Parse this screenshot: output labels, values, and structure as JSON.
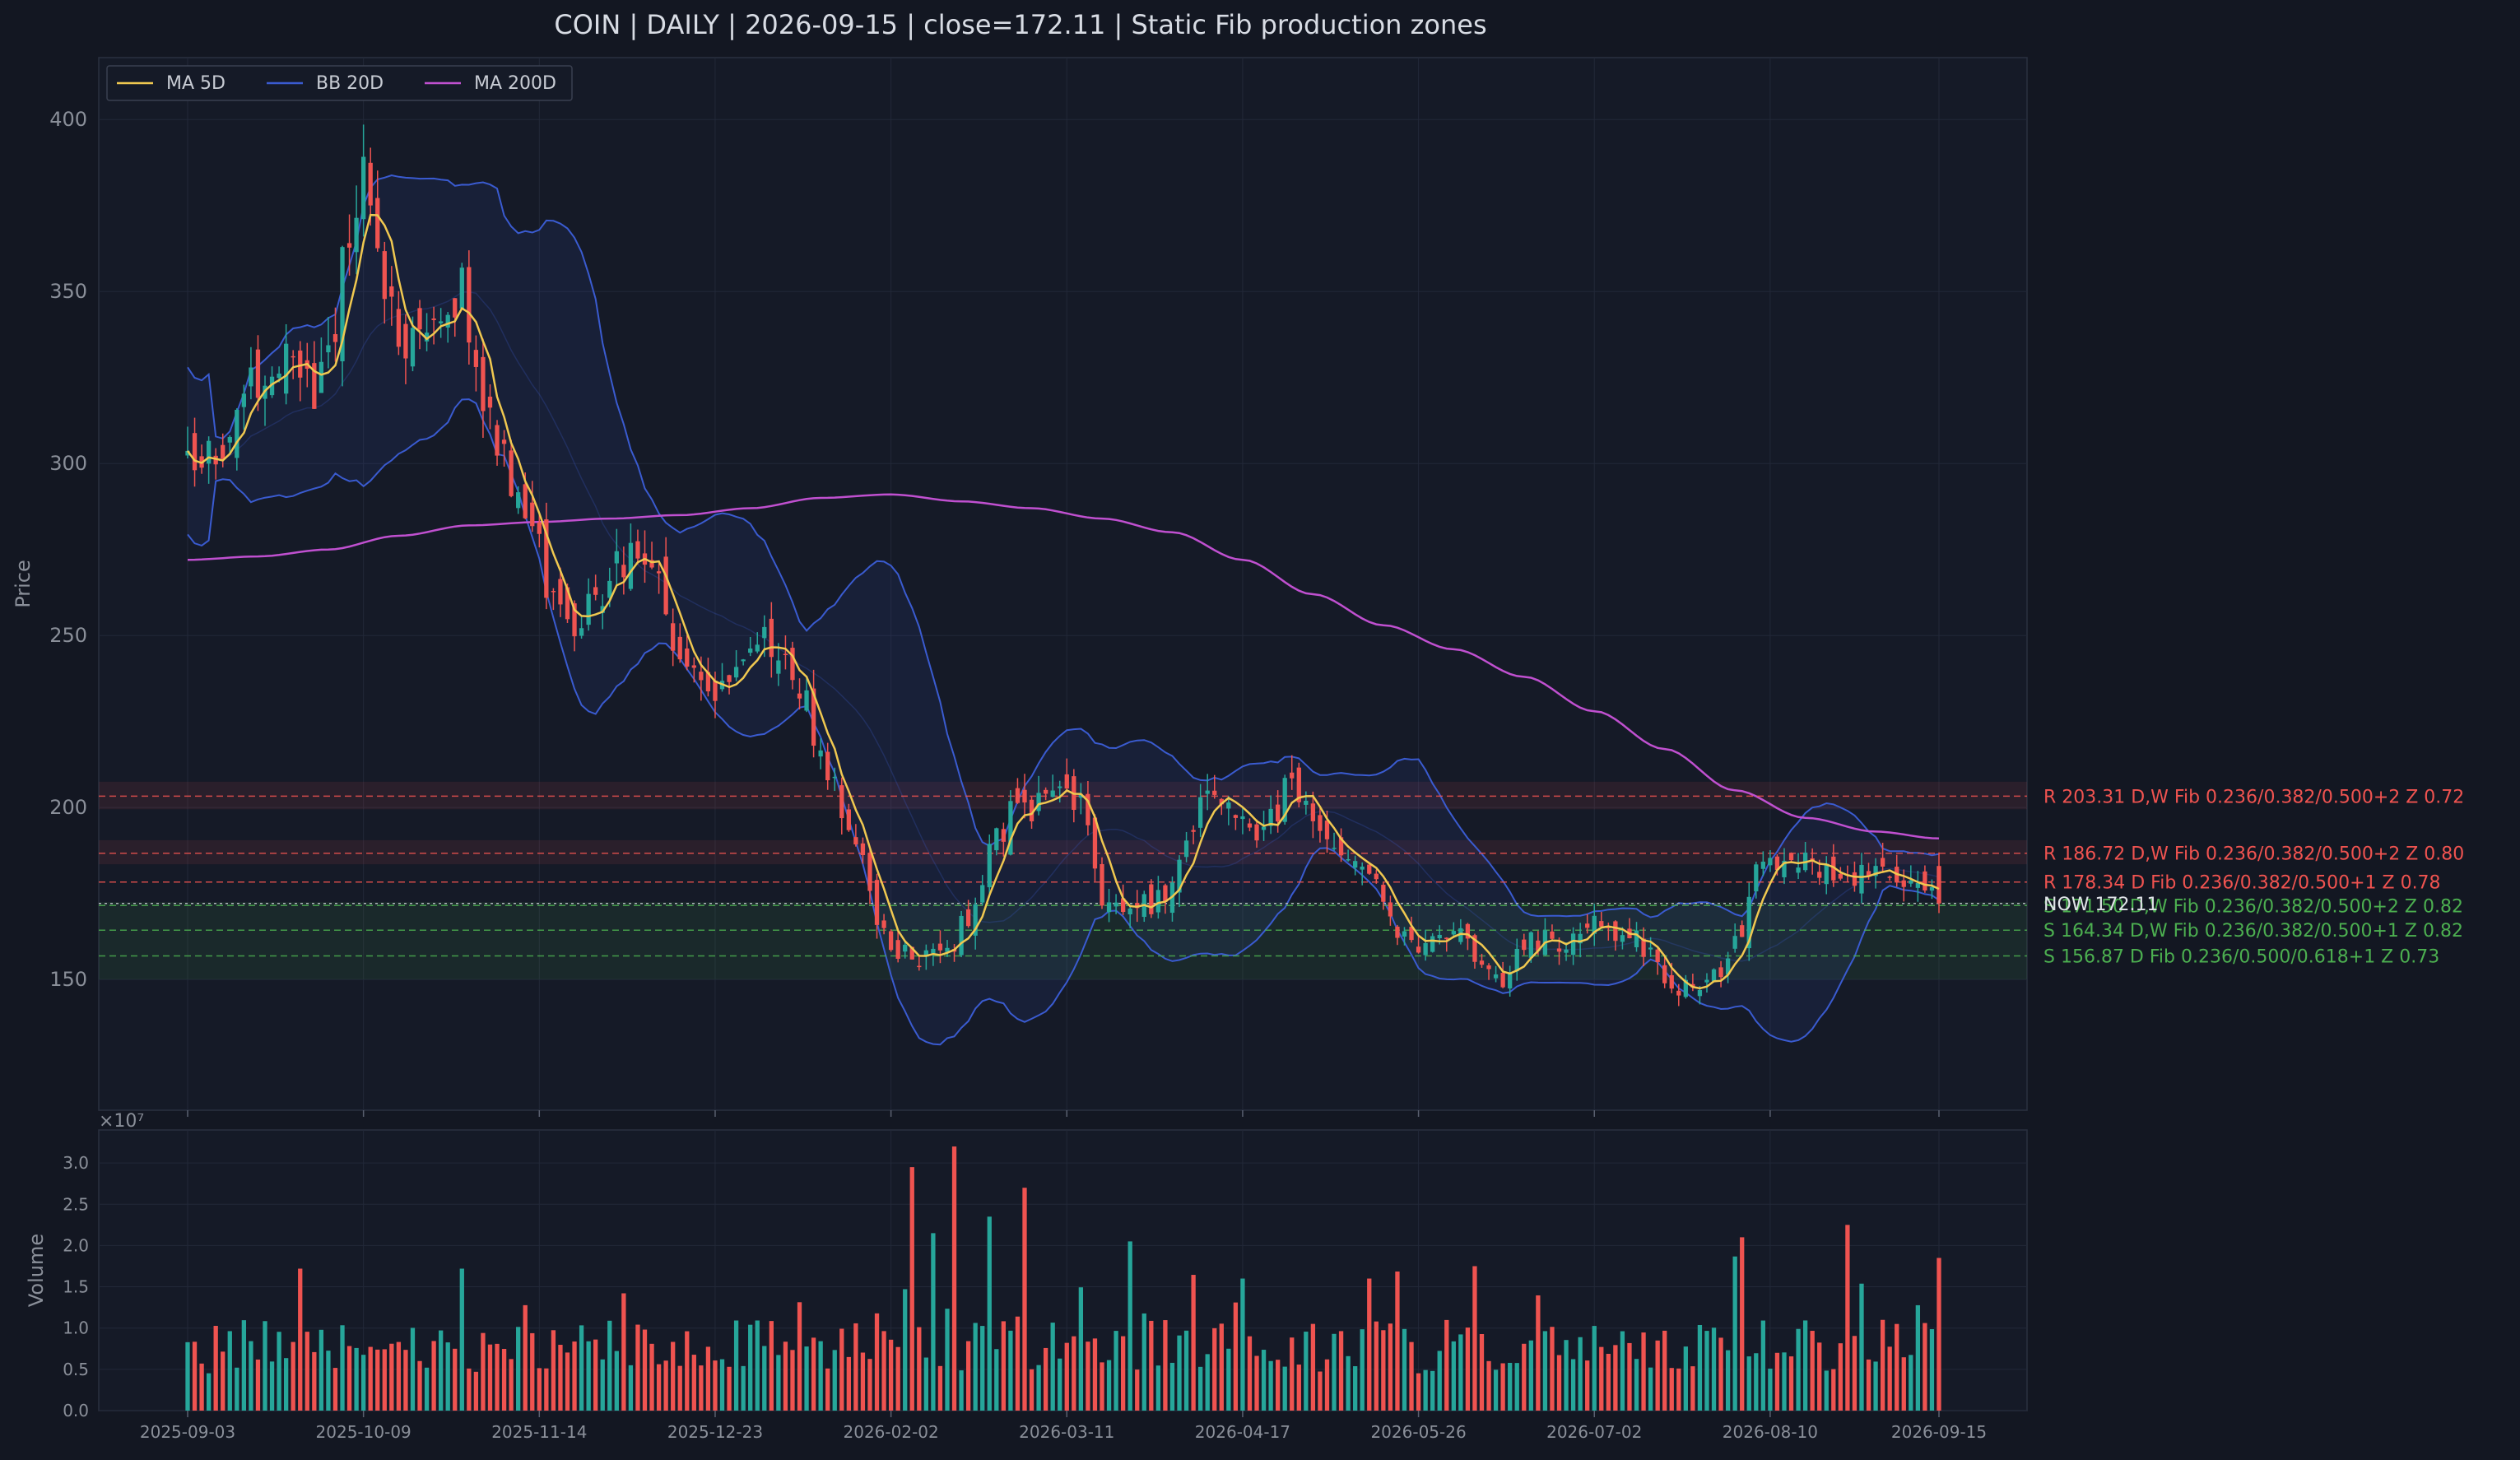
{
  "title": "COIN  |  DAILY  |  2026-09-15  |  close=172.11  |  Static Fib production zones",
  "colors": {
    "background": "#131722",
    "panel": "#151a27",
    "grid": "#222838",
    "up": "#26a69a",
    "down": "#ef5350",
    "ma5": "#f0c850",
    "bb20": "#3a5bd0",
    "bb_fill": "#1a2342",
    "ma200": "#c050d0",
    "resistance": "#ef5350",
    "support": "#4caf50",
    "text": "#c8ccd4",
    "axis_text": "#8a8f99"
  },
  "chart_data": {
    "type": "candlestick",
    "title": "COIN  |  DAILY  |  2026-09-15  |  close=172.11  |  Static Fib production zones",
    "price_panel": {
      "ylabel": "Price",
      "ylim": [
        112,
        418
      ],
      "yticks": [
        150,
        200,
        250,
        300,
        350,
        400
      ],
      "grid": true,
      "legend_position": "top-left",
      "legend": [
        "MA 5D",
        "BB 20D",
        "MA 200D"
      ]
    },
    "volume_panel": {
      "ylabel": "Volume",
      "multiplier_label": "×10⁷",
      "ylim": [
        0,
        3.4
      ],
      "yticks": [
        "0.0",
        "0.5",
        "1.0",
        "1.5",
        "2.0",
        "2.5",
        "3.0"
      ]
    },
    "x_ticks": [
      "2025-09-03",
      "2025-10-09",
      "2025-11-14",
      "2025-12-23",
      "2026-02-02",
      "2026-03-11",
      "2026-04-17",
      "2026-05-26",
      "2026-07-02",
      "2026-08-10",
      "2026-09-15"
    ],
    "x_tick_index": [
      0,
      25,
      50,
      75,
      100,
      125,
      150,
      175,
      200,
      225,
      249
    ],
    "num_bars": 250,
    "close_anchors": [
      [
        0,
        305
      ],
      [
        4,
        303
      ],
      [
        10,
        325
      ],
      [
        15,
        333
      ],
      [
        18,
        320
      ],
      [
        21,
        340
      ],
      [
        23,
        370
      ],
      [
        25,
        385
      ],
      [
        27,
        355
      ],
      [
        30,
        340
      ],
      [
        33,
        332
      ],
      [
        36,
        348
      ],
      [
        39,
        350
      ],
      [
        42,
        320
      ],
      [
        45,
        300
      ],
      [
        48,
        285
      ],
      [
        52,
        262
      ],
      [
        55,
        248
      ],
      [
        58,
        262
      ],
      [
        62,
        272
      ],
      [
        66,
        270
      ],
      [
        70,
        245
      ],
      [
        74,
        238
      ],
      [
        76,
        232
      ],
      [
        79,
        246
      ],
      [
        83,
        248
      ],
      [
        87,
        233
      ],
      [
        91,
        212
      ],
      [
        95,
        190
      ],
      [
        98,
        168
      ],
      [
        101,
        158
      ],
      [
        104,
        156
      ],
      [
        108,
        160
      ],
      [
        112,
        170
      ],
      [
        115,
        192
      ],
      [
        118,
        200
      ],
      [
        121,
        200
      ],
      [
        124,
        203
      ],
      [
        127,
        200
      ],
      [
        130,
        175
      ],
      [
        133,
        168
      ],
      [
        136,
        172
      ],
      [
        139,
        175
      ],
      [
        142,
        190
      ],
      [
        145,
        202
      ],
      [
        148,
        200
      ],
      [
        151,
        192
      ],
      [
        154,
        198
      ],
      [
        157,
        207
      ],
      [
        160,
        198
      ],
      [
        163,
        190
      ],
      [
        166,
        185
      ],
      [
        169,
        176
      ],
      [
        172,
        162
      ],
      [
        175,
        157
      ],
      [
        178,
        162
      ],
      [
        181,
        165
      ],
      [
        184,
        155
      ],
      [
        187,
        148
      ],
      [
        190,
        160
      ],
      [
        193,
        162
      ],
      [
        196,
        160
      ],
      [
        200,
        165
      ],
      [
        204,
        163
      ],
      [
        207,
        160
      ],
      [
        210,
        150
      ],
      [
        213,
        148
      ],
      [
        216,
        150
      ],
      [
        218,
        150
      ],
      [
        220,
        160
      ],
      [
        223,
        182
      ],
      [
        226,
        186
      ],
      [
        229,
        184
      ],
      [
        232,
        183
      ],
      [
        235,
        181
      ],
      [
        238,
        180
      ],
      [
        241,
        179
      ],
      [
        244,
        177
      ],
      [
        247,
        174
      ],
      [
        249,
        172.11
      ]
    ],
    "ma200_anchors": [
      [
        0,
        272
      ],
      [
        10,
        273
      ],
      [
        20,
        275
      ],
      [
        30,
        279
      ],
      [
        40,
        282
      ],
      [
        50,
        283
      ],
      [
        60,
        284
      ],
      [
        70,
        285
      ],
      [
        80,
        287
      ],
      [
        90,
        290
      ],
      [
        100,
        291
      ],
      [
        110,
        289
      ],
      [
        120,
        287
      ],
      [
        130,
        284
      ],
      [
        140,
        280
      ],
      [
        150,
        272
      ],
      [
        160,
        262
      ],
      [
        170,
        253
      ],
      [
        180,
        246
      ],
      [
        190,
        238
      ],
      [
        200,
        228
      ],
      [
        210,
        217
      ],
      [
        220,
        205
      ],
      [
        230,
        197
      ],
      [
        240,
        193
      ],
      [
        249,
        191
      ]
    ],
    "levels": [
      {
        "kind": "R",
        "price": 203.31,
        "label": "R 203.31  D,W  Fib 0.236/0.382/0.500+2  Z 0.72"
      },
      {
        "kind": "R",
        "price": 186.72,
        "label": "R 186.72  D,W  Fib 0.236/0.382/0.500+2  Z 0.80"
      },
      {
        "kind": "R",
        "price": 178.34,
        "label": "R 178.34  D  Fib 0.236/0.382/0.500+1  Z 0.78"
      },
      {
        "kind": "S",
        "price": 171.5,
        "label": "S 171.50  D,W  Fib 0.236/0.382/0.500+2  Z 0.82"
      },
      {
        "kind": "S",
        "price": 164.34,
        "label": "S 164.34  D,W  Fib 0.236/0.382/0.500+1  Z 0.82"
      },
      {
        "kind": "S",
        "price": 156.87,
        "label": "S 156.87  D  Fib 0.236/0.500/0.618+1  Z 0.73"
      }
    ],
    "now": {
      "price": 172.11,
      "label": "NOW 172.11"
    },
    "zones": [
      {
        "kind": "R",
        "low": 199.5,
        "high": 207.5
      },
      {
        "kind": "R",
        "low": 183.5,
        "high": 190.5
      },
      {
        "kind": "S",
        "low": 150.0,
        "high": 172.5
      }
    ]
  }
}
